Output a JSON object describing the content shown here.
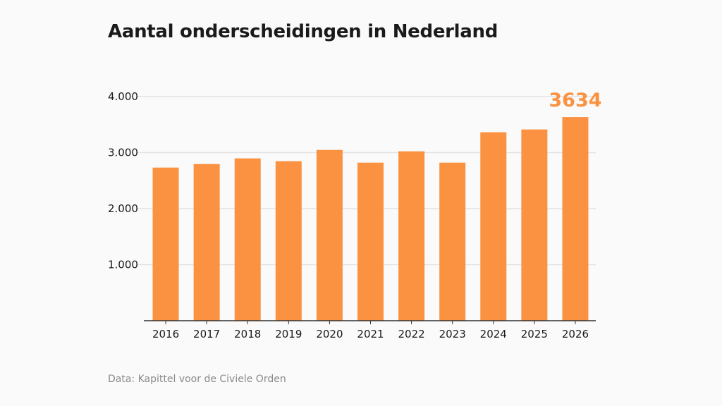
{
  "chart_data": {
    "type": "bar",
    "title": "Aantal onderscheidingen in Nederland",
    "xlabel": "",
    "ylabel": "",
    "categories": [
      "2016",
      "2017",
      "2018",
      "2019",
      "2020",
      "2021",
      "2022",
      "2023",
      "2024",
      "2025",
      "2026"
    ],
    "values": [
      2733,
      2796,
      2897,
      2846,
      3048,
      2821,
      3023,
      2821,
      3363,
      3413,
      3634
    ],
    "ylim": [
      0,
      4000
    ],
    "yticks": [
      1000,
      2000,
      3000,
      4000
    ],
    "ytick_labels": [
      "1.000",
      "2.000",
      "3.000",
      "4.000"
    ],
    "grid": true,
    "highlight": {
      "category": "2026",
      "label": "3634"
    },
    "bar_color": "#fa9241",
    "source": "Data: Kapittel voor de Civiele Orden"
  }
}
